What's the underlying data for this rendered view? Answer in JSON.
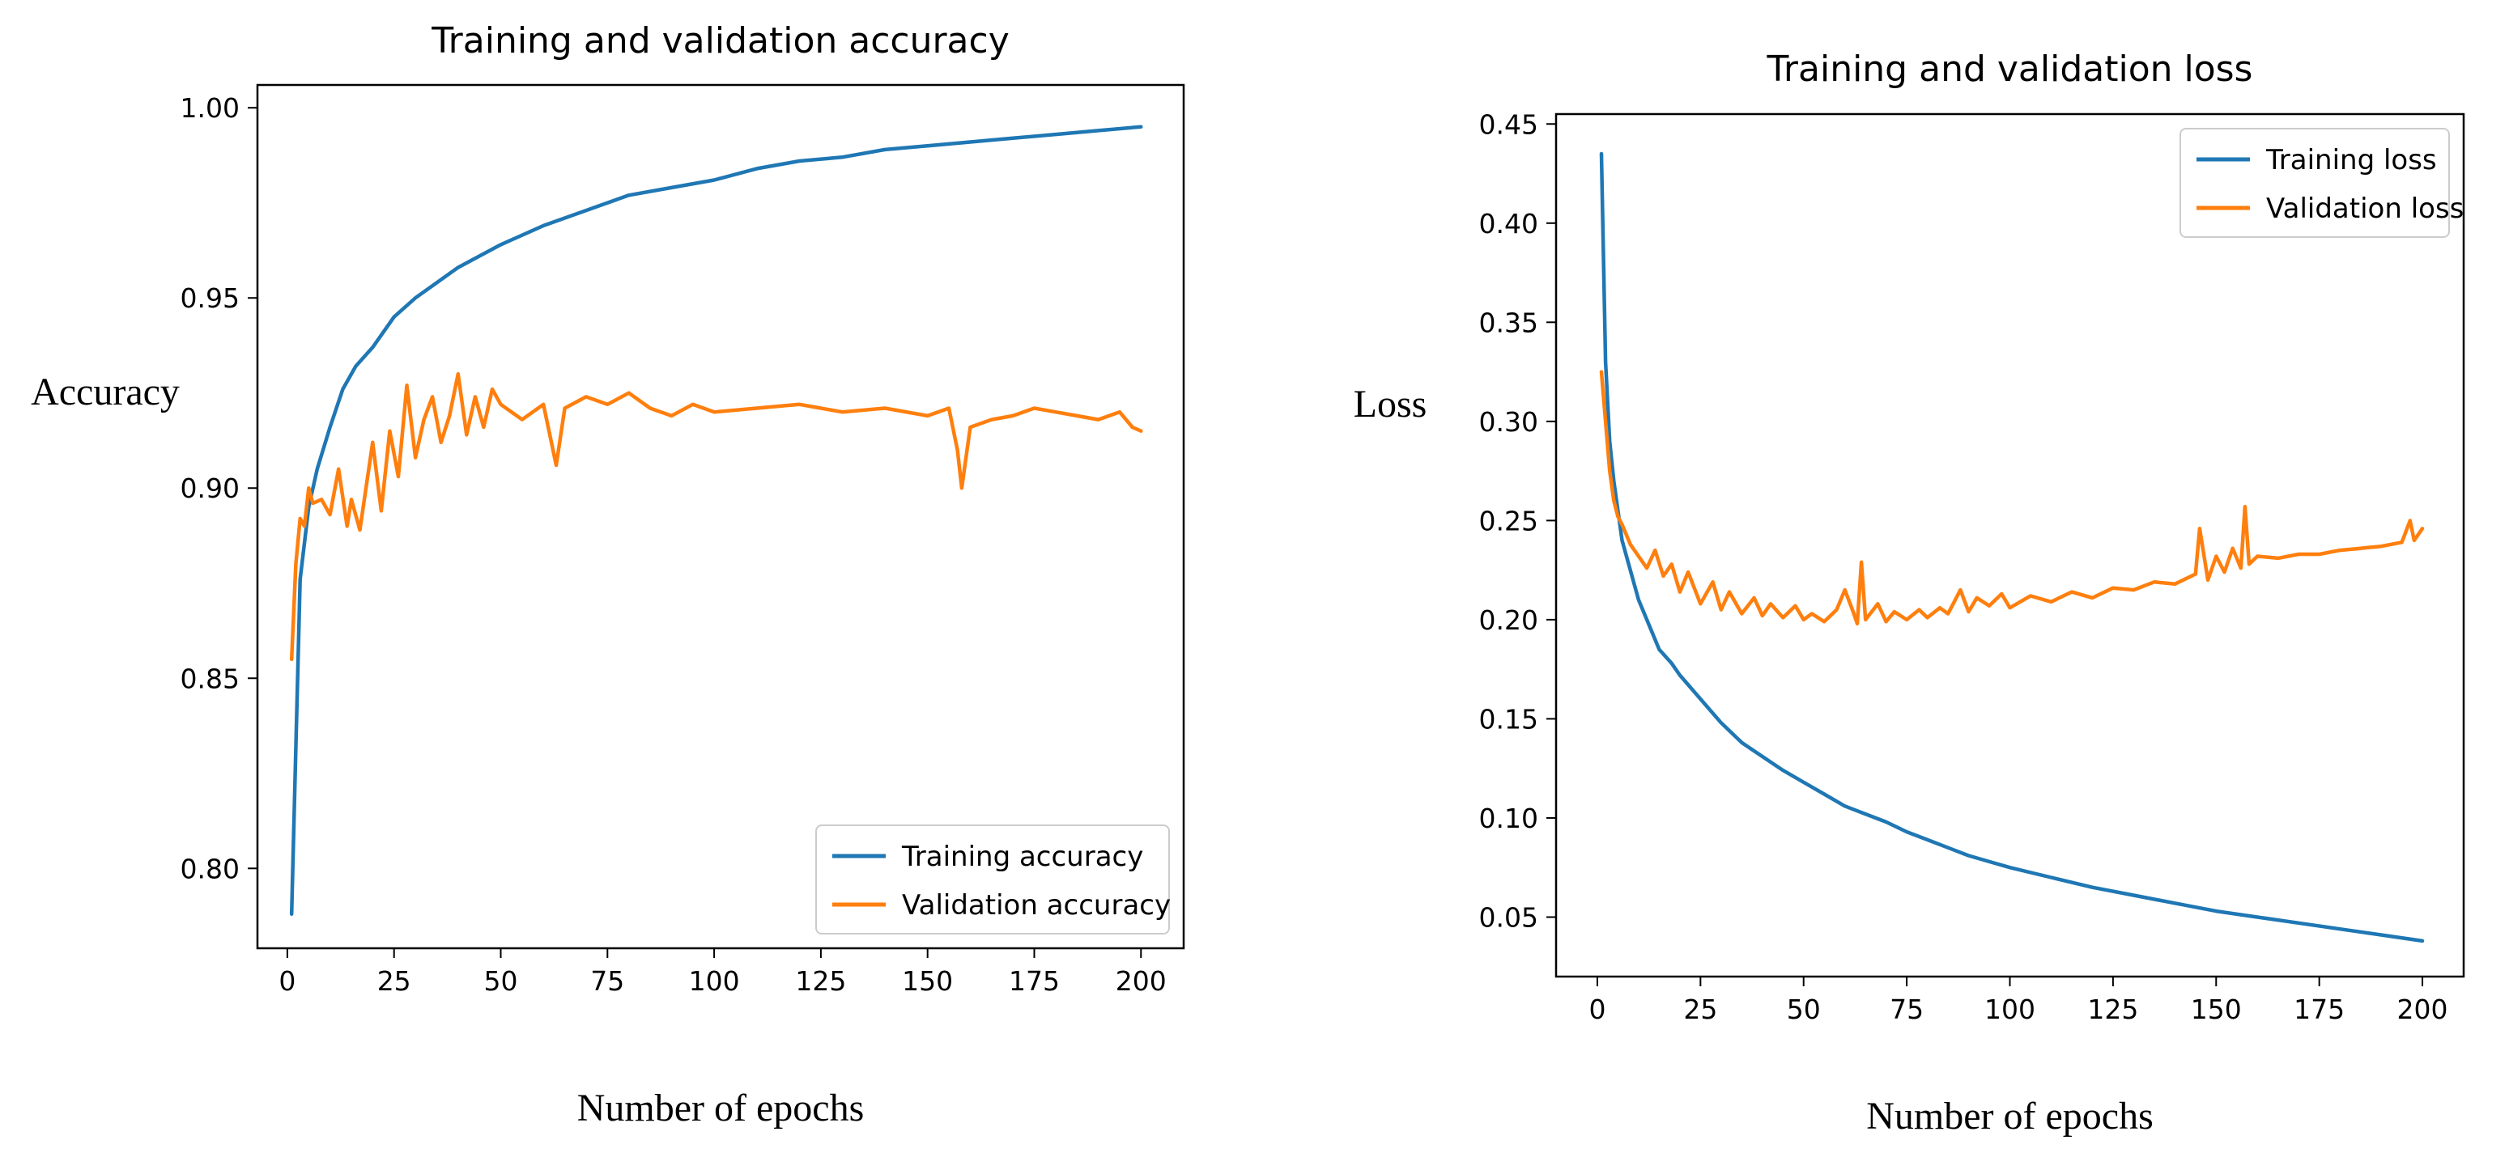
{
  "chart_data": [
    {
      "type": "line",
      "title": "Training and validation accuracy",
      "xlabel": "Number of epochs",
      "ylabel": "Accuracy",
      "xlim": [
        -7,
        210
      ],
      "ylim": [
        0.779,
        1.006
      ],
      "xticks": [
        0,
        25,
        50,
        75,
        100,
        125,
        150,
        175,
        200
      ],
      "yticks": [
        0.8,
        0.85,
        0.9,
        0.95,
        1.0
      ],
      "ytick_decimals": 2,
      "grid": false,
      "legend_position": "lower-right",
      "series": [
        {
          "name": "Training accuracy",
          "color": "#1f77b4",
          "x": [
            1,
            3,
            5,
            7,
            10,
            13,
            16,
            20,
            25,
            30,
            35,
            40,
            45,
            50,
            60,
            70,
            80,
            90,
            100,
            110,
            120,
            130,
            140,
            150,
            160,
            170,
            180,
            190,
            200
          ],
          "values": [
            0.788,
            0.876,
            0.895,
            0.905,
            0.916,
            0.926,
            0.932,
            0.937,
            0.945,
            0.95,
            0.954,
            0.958,
            0.961,
            0.964,
            0.969,
            0.973,
            0.977,
            0.979,
            0.981,
            0.984,
            0.986,
            0.987,
            0.989,
            0.99,
            0.991,
            0.992,
            0.993,
            0.994,
            0.995
          ]
        },
        {
          "name": "Validation accuracy",
          "color": "#ff7f0e",
          "x": [
            1,
            2,
            3,
            4,
            5,
            6,
            8,
            10,
            12,
            14,
            15,
            17,
            20,
            22,
            24,
            26,
            28,
            30,
            32,
            34,
            36,
            38,
            40,
            42,
            44,
            46,
            48,
            50,
            55,
            60,
            63,
            65,
            70,
            75,
            80,
            85,
            90,
            95,
            100,
            110,
            120,
            130,
            140,
            150,
            155,
            157,
            158,
            160,
            165,
            170,
            175,
            180,
            185,
            190,
            195,
            198,
            200
          ],
          "values": [
            0.855,
            0.88,
            0.892,
            0.89,
            0.9,
            0.896,
            0.897,
            0.893,
            0.905,
            0.89,
            0.897,
            0.889,
            0.912,
            0.894,
            0.915,
            0.903,
            0.927,
            0.908,
            0.918,
            0.924,
            0.912,
            0.919,
            0.93,
            0.914,
            0.924,
            0.916,
            0.926,
            0.922,
            0.918,
            0.922,
            0.906,
            0.921,
            0.924,
            0.922,
            0.925,
            0.921,
            0.919,
            0.922,
            0.92,
            0.921,
            0.922,
            0.92,
            0.921,
            0.919,
            0.921,
            0.91,
            0.9,
            0.916,
            0.918,
            0.919,
            0.921,
            0.92,
            0.919,
            0.918,
            0.92,
            0.916,
            0.915
          ]
        }
      ]
    },
    {
      "type": "line",
      "title": "Training and validation loss",
      "xlabel": "Number of epochs",
      "ylabel": "Loss",
      "xlim": [
        -10,
        210
      ],
      "ylim": [
        0.02,
        0.455
      ],
      "xticks": [
        0,
        25,
        50,
        75,
        100,
        125,
        150,
        175,
        200
      ],
      "yticks": [
        0.05,
        0.1,
        0.15,
        0.2,
        0.25,
        0.3,
        0.35,
        0.4,
        0.45
      ],
      "ytick_decimals": 2,
      "grid": false,
      "legend_position": "top-right",
      "series": [
        {
          "name": "Training loss",
          "color": "#1f77b4",
          "x": [
            1,
            2,
            3,
            4,
            5,
            6,
            8,
            10,
            12,
            15,
            18,
            20,
            25,
            30,
            35,
            40,
            45,
            50,
            55,
            60,
            65,
            70,
            75,
            80,
            85,
            90,
            95,
            100,
            110,
            120,
            130,
            140,
            150,
            160,
            170,
            180,
            190,
            200
          ],
          "values": [
            0.435,
            0.33,
            0.29,
            0.27,
            0.255,
            0.24,
            0.225,
            0.21,
            0.2,
            0.185,
            0.178,
            0.172,
            0.16,
            0.148,
            0.138,
            0.131,
            0.124,
            0.118,
            0.112,
            0.106,
            0.102,
            0.098,
            0.093,
            0.089,
            0.085,
            0.081,
            0.078,
            0.075,
            0.07,
            0.065,
            0.061,
            0.057,
            0.053,
            0.05,
            0.047,
            0.044,
            0.041,
            0.038
          ]
        },
        {
          "name": "Validation loss",
          "color": "#ff7f0e",
          "x": [
            1,
            2,
            3,
            4,
            5,
            6,
            8,
            10,
            12,
            14,
            16,
            18,
            20,
            22,
            25,
            28,
            30,
            32,
            35,
            38,
            40,
            42,
            45,
            48,
            50,
            52,
            55,
            58,
            60,
            62,
            63,
            64,
            65,
            68,
            70,
            72,
            75,
            78,
            80,
            83,
            85,
            88,
            90,
            92,
            95,
            98,
            100,
            105,
            110,
            115,
            120,
            125,
            130,
            135,
            140,
            145,
            146,
            148,
            150,
            152,
            154,
            156,
            157,
            158,
            160,
            165,
            170,
            175,
            180,
            185,
            190,
            195,
            197,
            198,
            200
          ],
          "values": [
            0.325,
            0.3,
            0.275,
            0.26,
            0.252,
            0.248,
            0.238,
            0.232,
            0.226,
            0.235,
            0.222,
            0.228,
            0.214,
            0.224,
            0.208,
            0.219,
            0.205,
            0.214,
            0.203,
            0.211,
            0.202,
            0.208,
            0.201,
            0.207,
            0.2,
            0.203,
            0.199,
            0.205,
            0.215,
            0.204,
            0.198,
            0.229,
            0.2,
            0.208,
            0.199,
            0.204,
            0.2,
            0.205,
            0.201,
            0.206,
            0.203,
            0.215,
            0.204,
            0.211,
            0.207,
            0.213,
            0.206,
            0.212,
            0.209,
            0.214,
            0.211,
            0.216,
            0.215,
            0.219,
            0.218,
            0.223,
            0.246,
            0.22,
            0.232,
            0.224,
            0.236,
            0.226,
            0.257,
            0.228,
            0.232,
            0.231,
            0.233,
            0.233,
            0.235,
            0.236,
            0.237,
            0.239,
            0.25,
            0.24,
            0.246
          ]
        }
      ]
    }
  ]
}
